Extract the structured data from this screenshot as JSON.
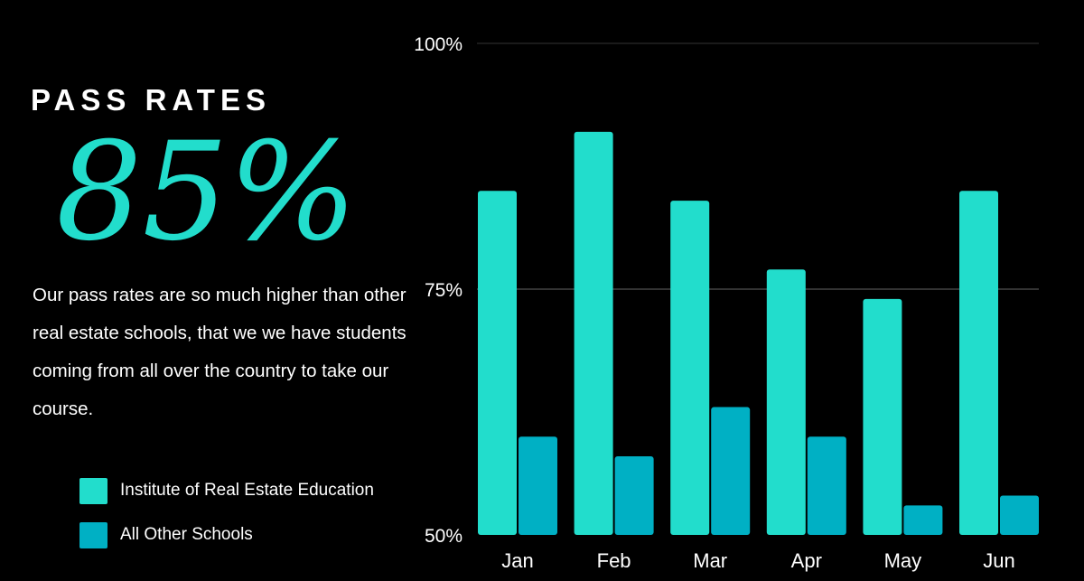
{
  "heading": "PASS RATES",
  "stat": "85%",
  "description": "Our pass rates are so much higher than other real estate schools, that we we have students coming from all over the country to take our course.",
  "colors": {
    "background": "#000000",
    "primary": "#22DDCC",
    "secondary": "#00B0C4",
    "gridline": "#333333"
  },
  "chart_data": {
    "type": "bar",
    "categories": [
      "Jan",
      "Feb",
      "Mar",
      "Apr",
      "May",
      "Jun"
    ],
    "series": [
      {
        "name": "Institute of Real Estate Education",
        "color": "#22DDCC",
        "values": [
          85,
          91,
          84,
          77,
          74,
          85
        ]
      },
      {
        "name": "All Other Schools",
        "color": "#00B0C4",
        "values": [
          60,
          58,
          63,
          60,
          53,
          54
        ]
      }
    ],
    "ylim": [
      50,
      100
    ],
    "yticks": [
      {
        "value": 100,
        "label": "100%"
      },
      {
        "value": 75,
        "label": "75%"
      },
      {
        "value": 50,
        "label": "50%"
      }
    ],
    "grid": true,
    "legend": "bottom-left"
  }
}
